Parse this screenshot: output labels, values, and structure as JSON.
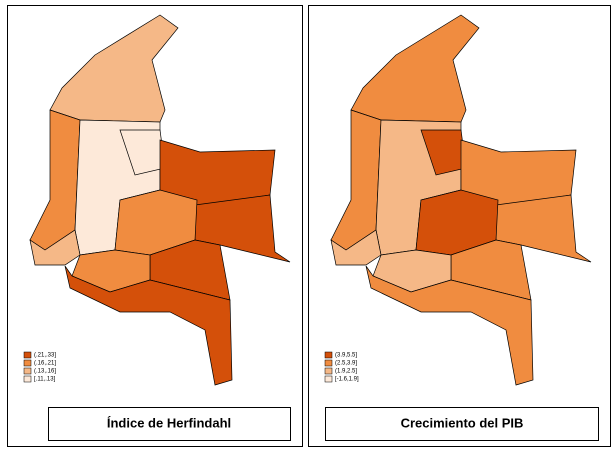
{
  "panels": [
    {
      "title": "Índice de Herfindahl",
      "legend": [
        {
          "label": "(.21,.33]",
          "color": "#d4500a"
        },
        {
          "label": "(.16,.21]",
          "color": "#f08c40"
        },
        {
          "label": "(.13,.16]",
          "color": "#f5b887"
        },
        {
          "label": "[.11,.13]",
          "color": "#fde9d9"
        }
      ]
    },
    {
      "title": "Crecimiento del PIB",
      "legend": [
        {
          "label": "(3.9,5.5]",
          "color": "#d4500a"
        },
        {
          "label": "(2.5,3.9]",
          "color": "#f08c40"
        },
        {
          "label": "(1.9,2.5]",
          "color": "#f5b887"
        },
        {
          "label": "[-1.6,1.9]",
          "color": "#fde9d9"
        }
      ]
    }
  ]
}
